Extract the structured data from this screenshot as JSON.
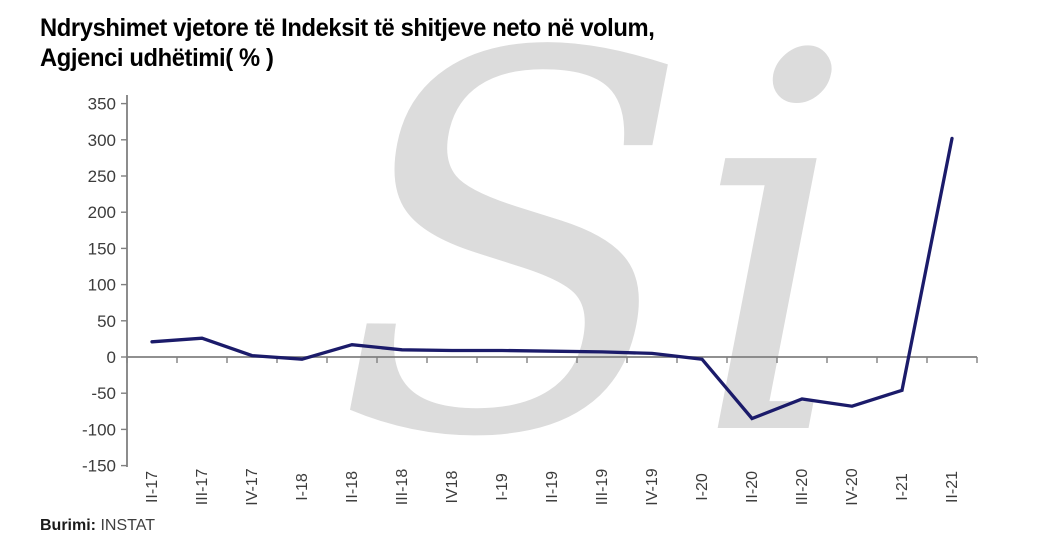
{
  "header": {
    "title_line1": "Ndryshimet vjetore të Indeksit të shitjeve neto në volum,",
    "title_line2": "Agjenci udhëtimi( % )"
  },
  "watermark": {
    "text": "Si"
  },
  "source": {
    "label": "Burimi:",
    "value": " INSTAT"
  },
  "chart_data": {
    "type": "line",
    "title": "Ndryshimet vjetore të Indeksit të shitjeve neto në volum, Agjenci udhëtimi( % )",
    "categories": [
      "II-17",
      "III-17",
      "IV-17",
      "I-18",
      "II-18",
      "III-18",
      "IV18",
      "I-19",
      "II-19",
      "III-19",
      "IV-19",
      "I-20",
      "II-20",
      "III-20",
      "IV-20",
      "I-21",
      "II-21"
    ],
    "values": [
      21,
      26,
      2,
      -3,
      17,
      10,
      9,
      9,
      8,
      7,
      5,
      -3,
      -85,
      -58,
      -68,
      -46,
      302
    ],
    "xlabel": "",
    "ylabel": "",
    "ylim": [
      -150,
      350
    ],
    "ytick_step": 50,
    "yticks": [
      350,
      300,
      250,
      200,
      150,
      100,
      50,
      0,
      -50,
      -100,
      -150
    ],
    "grid": false,
    "legend": "none",
    "line_color": "#1b1b6a",
    "axis_color": "#808080",
    "label_color": "#3c3c3c",
    "watermark_color": "#dcdcdc"
  }
}
